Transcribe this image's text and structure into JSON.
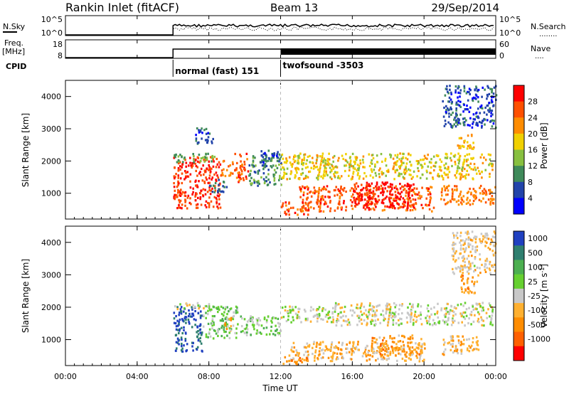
{
  "header": {
    "title": "Rankin Inlet (fitACF)",
    "beam": "Beam 13",
    "date": "29/Sep/2014"
  },
  "nsky_panel": {
    "left_label": "N.Sky",
    "left_ticks": [
      "10^5",
      "10^0"
    ],
    "right_ticks": [
      "10^5",
      "10^0"
    ],
    "right_label": "N.Search",
    "right_legend": "........"
  },
  "freq_panel": {
    "left_label_1": "Freq.",
    "left_label_2": "[MHz]",
    "left_ticks": [
      "18",
      "8"
    ],
    "right_ticks": [
      "60",
      "0"
    ],
    "right_label": "Nave",
    "right_legend": "...."
  },
  "cpid": {
    "label": "CPID",
    "segments": [
      {
        "name": "normal (fast) 151",
        "start_hour": 6.0
      },
      {
        "name": "twofsound -3503",
        "start_hour": 12.0
      }
    ]
  },
  "time_axis": {
    "label": "Time UT",
    "ticks": [
      "00:00",
      "04:00",
      "08:00",
      "12:00",
      "16:00",
      "20:00",
      "00:00"
    ],
    "range_hours": [
      0,
      24
    ]
  },
  "colors": {
    "power": [
      "#0000ff",
      "#2244aa",
      "#3f8a5a",
      "#88c040",
      "#f0d000",
      "#ff8c00",
      "#ff5000",
      "#ff0000"
    ],
    "velocity": [
      "#2040c0",
      "#2f7f6f",
      "#4caf50",
      "#66d030",
      "#c8c8c8",
      "#ffb030",
      "#ff8c00",
      "#ff6000",
      "#ff0000"
    ]
  },
  "chart_data": [
    {
      "type": "heatmap",
      "ylabel": "Slant Range [km]",
      "yticks": [
        "1000",
        "2000",
        "3000",
        "4000"
      ],
      "ylim": [
        200,
        4500
      ],
      "colorbar_label": "Power [dB]",
      "colorbar_ticks": [
        "4",
        "8",
        "12",
        "16",
        "20",
        "24",
        "28"
      ],
      "value_range": [
        0,
        32
      ],
      "blobs": [
        {
          "t0": 6.0,
          "t1": 8.6,
          "r0": 500,
          "r1": 2100,
          "v": 28
        },
        {
          "t0": 6.0,
          "t1": 8.3,
          "r0": 1900,
          "r1": 2200,
          "v": 12
        },
        {
          "t0": 8.6,
          "t1": 9.3,
          "r0": 1500,
          "r1": 2000,
          "v": 24
        },
        {
          "t0": 9.4,
          "t1": 10.2,
          "r0": 1300,
          "r1": 2200,
          "v": 26
        },
        {
          "t0": 10.2,
          "t1": 12.0,
          "r0": 1200,
          "r1": 2200,
          "v": 10
        },
        {
          "t0": 7.2,
          "t1": 8.2,
          "r0": 2500,
          "r1": 3000,
          "v": 6
        },
        {
          "t0": 8.0,
          "t1": 9.0,
          "r0": 1000,
          "r1": 1400,
          "v": 8
        },
        {
          "t0": 12.0,
          "t1": 13.5,
          "r0": 300,
          "r1": 700,
          "v": 26
        },
        {
          "t0": 13.0,
          "t1": 20.5,
          "r0": 400,
          "r1": 1200,
          "v": 26
        },
        {
          "t0": 12.0,
          "t1": 23.8,
          "r0": 1400,
          "r1": 2200,
          "v": 18
        },
        {
          "t0": 16.0,
          "t1": 19.5,
          "r0": 500,
          "r1": 1300,
          "v": 30
        },
        {
          "t0": 20.8,
          "t1": 24.0,
          "r0": 600,
          "r1": 1200,
          "v": 24
        },
        {
          "t0": 21.8,
          "t1": 22.8,
          "r0": 2300,
          "r1": 2800,
          "v": 20
        },
        {
          "t0": 21.0,
          "t1": 24.0,
          "r0": 3000,
          "r1": 4300,
          "v": 6
        },
        {
          "t0": 10.8,
          "t1": 12.0,
          "r0": 1800,
          "r1": 2300,
          "v": 7
        }
      ]
    },
    {
      "type": "heatmap",
      "ylabel": "Slant Range [km]",
      "yticks": [
        "1000",
        "2000",
        "3000",
        "4000"
      ],
      "ylim": [
        200,
        4500
      ],
      "colorbar_label": "Velocity [m s^-1]",
      "colorbar_ticks": [
        "1000",
        "500",
        "100",
        "25",
        "-25",
        "-100",
        "-500",
        "-1000"
      ],
      "value_range": [
        -1200,
        1200
      ],
      "blobs": [
        {
          "t0": 6.0,
          "t1": 7.6,
          "r0": 600,
          "r1": 2000,
          "v": 1000
        },
        {
          "t0": 7.6,
          "t1": 9.6,
          "r0": 1000,
          "r1": 2000,
          "v": 300
        },
        {
          "t0": 9.6,
          "t1": 12.0,
          "r0": 1100,
          "r1": 1700,
          "v": 200
        },
        {
          "t0": 8.8,
          "t1": 9.2,
          "r0": 1200,
          "r1": 1700,
          "v": -300
        },
        {
          "t0": 6.0,
          "t1": 8.0,
          "r0": 1900,
          "r1": 2100,
          "v": 60
        },
        {
          "t0": 12.0,
          "t1": 15.0,
          "r0": 1500,
          "r1": 2000,
          "v": 80
        },
        {
          "t0": 12.5,
          "t1": 20.0,
          "r0": 300,
          "r1": 900,
          "v": -300
        },
        {
          "t0": 15.0,
          "t1": 23.8,
          "r0": 1400,
          "r1": 2100,
          "v": 0
        },
        {
          "t0": 17.0,
          "t1": 20.0,
          "r0": 500,
          "r1": 1100,
          "v": -400
        },
        {
          "t0": 21.0,
          "t1": 23.0,
          "r0": 500,
          "r1": 1100,
          "v": -250
        },
        {
          "t0": 22.0,
          "t1": 23.0,
          "r0": 2400,
          "r1": 3000,
          "v": -400
        },
        {
          "t0": 21.5,
          "t1": 24.0,
          "r0": 3000,
          "r1": 4300,
          "v": -150
        },
        {
          "t0": 12.0,
          "t1": 13.5,
          "r0": 200,
          "r1": 500,
          "v": -600
        }
      ]
    }
  ]
}
